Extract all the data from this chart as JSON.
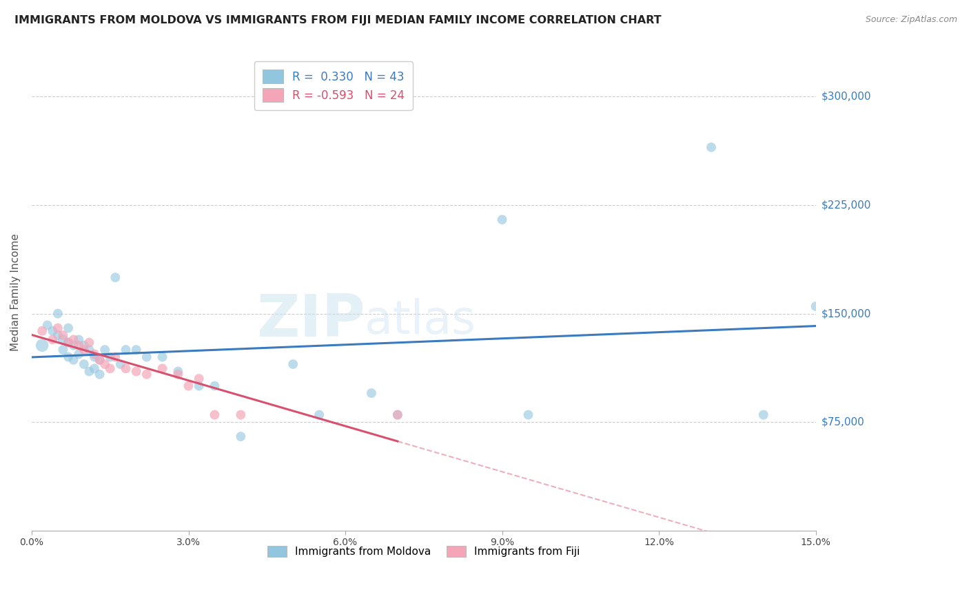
{
  "title": "IMMIGRANTS FROM MOLDOVA VS IMMIGRANTS FROM FIJI MEDIAN FAMILY INCOME CORRELATION CHART",
  "source": "Source: ZipAtlas.com",
  "ylabel": "Median Family Income",
  "yticks": [
    75000,
    150000,
    225000,
    300000
  ],
  "ytick_labels": [
    "$75,000",
    "$150,000",
    "$225,000",
    "$300,000"
  ],
  "xlim": [
    0.0,
    0.15
  ],
  "ylim": [
    0,
    330000
  ],
  "xticks": [
    0.0,
    0.03,
    0.06,
    0.09,
    0.12,
    0.15
  ],
  "xtick_labels": [
    "0.0%",
    "3.0%",
    "6.0%",
    "9.0%",
    "12.0%",
    "15.0%"
  ],
  "legend_label1": "Immigrants from Moldova",
  "legend_label2": "Immigrants from Fiji",
  "r1": "0.330",
  "n1": "43",
  "r2": "-0.593",
  "n2": "24",
  "watermark_zip": "ZIP",
  "watermark_atlas": "atlas",
  "color_blue": "#92c5de",
  "color_pink": "#f4a6b8",
  "color_blue_line": "#3a7bbf",
  "color_pink_line": "#d94f6e",
  "moldova_x": [
    0.002,
    0.003,
    0.004,
    0.005,
    0.005,
    0.006,
    0.006,
    0.007,
    0.007,
    0.007,
    0.008,
    0.008,
    0.009,
    0.009,
    0.01,
    0.01,
    0.011,
    0.011,
    0.012,
    0.012,
    0.013,
    0.013,
    0.014,
    0.015,
    0.016,
    0.017,
    0.018,
    0.02,
    0.022,
    0.025,
    0.028,
    0.032,
    0.035,
    0.04,
    0.05,
    0.055,
    0.065,
    0.07,
    0.09,
    0.095,
    0.13,
    0.14,
    0.15
  ],
  "moldova_y": [
    128000,
    142000,
    138000,
    135000,
    150000,
    132000,
    125000,
    140000,
    130000,
    120000,
    128000,
    118000,
    132000,
    122000,
    128000,
    115000,
    125000,
    110000,
    120000,
    112000,
    118000,
    108000,
    125000,
    120000,
    175000,
    115000,
    125000,
    125000,
    120000,
    120000,
    110000,
    100000,
    100000,
    65000,
    115000,
    80000,
    95000,
    80000,
    215000,
    80000,
    265000,
    80000,
    155000
  ],
  "moldova_size": [
    180,
    100,
    100,
    100,
    100,
    120,
    100,
    100,
    100,
    100,
    100,
    100,
    100,
    100,
    100,
    100,
    100,
    100,
    100,
    100,
    100,
    100,
    100,
    100,
    100,
    100,
    100,
    100,
    100,
    100,
    100,
    100,
    100,
    100,
    100,
    100,
    100,
    100,
    100,
    100,
    100,
    100,
    100
  ],
  "fiji_x": [
    0.002,
    0.004,
    0.005,
    0.006,
    0.007,
    0.008,
    0.009,
    0.01,
    0.011,
    0.012,
    0.013,
    0.014,
    0.015,
    0.016,
    0.018,
    0.02,
    0.022,
    0.025,
    0.028,
    0.03,
    0.032,
    0.035,
    0.04,
    0.07
  ],
  "fiji_y": [
    138000,
    132000,
    140000,
    135000,
    130000,
    132000,
    128000,
    125000,
    130000,
    122000,
    118000,
    115000,
    112000,
    120000,
    112000,
    110000,
    108000,
    112000,
    108000,
    100000,
    105000,
    80000,
    80000,
    80000
  ],
  "fiji_size": [
    100,
    100,
    100,
    100,
    100,
    100,
    100,
    100,
    100,
    100,
    100,
    100,
    100,
    100,
    100,
    100,
    100,
    100,
    100,
    100,
    100,
    100,
    100,
    100
  ]
}
